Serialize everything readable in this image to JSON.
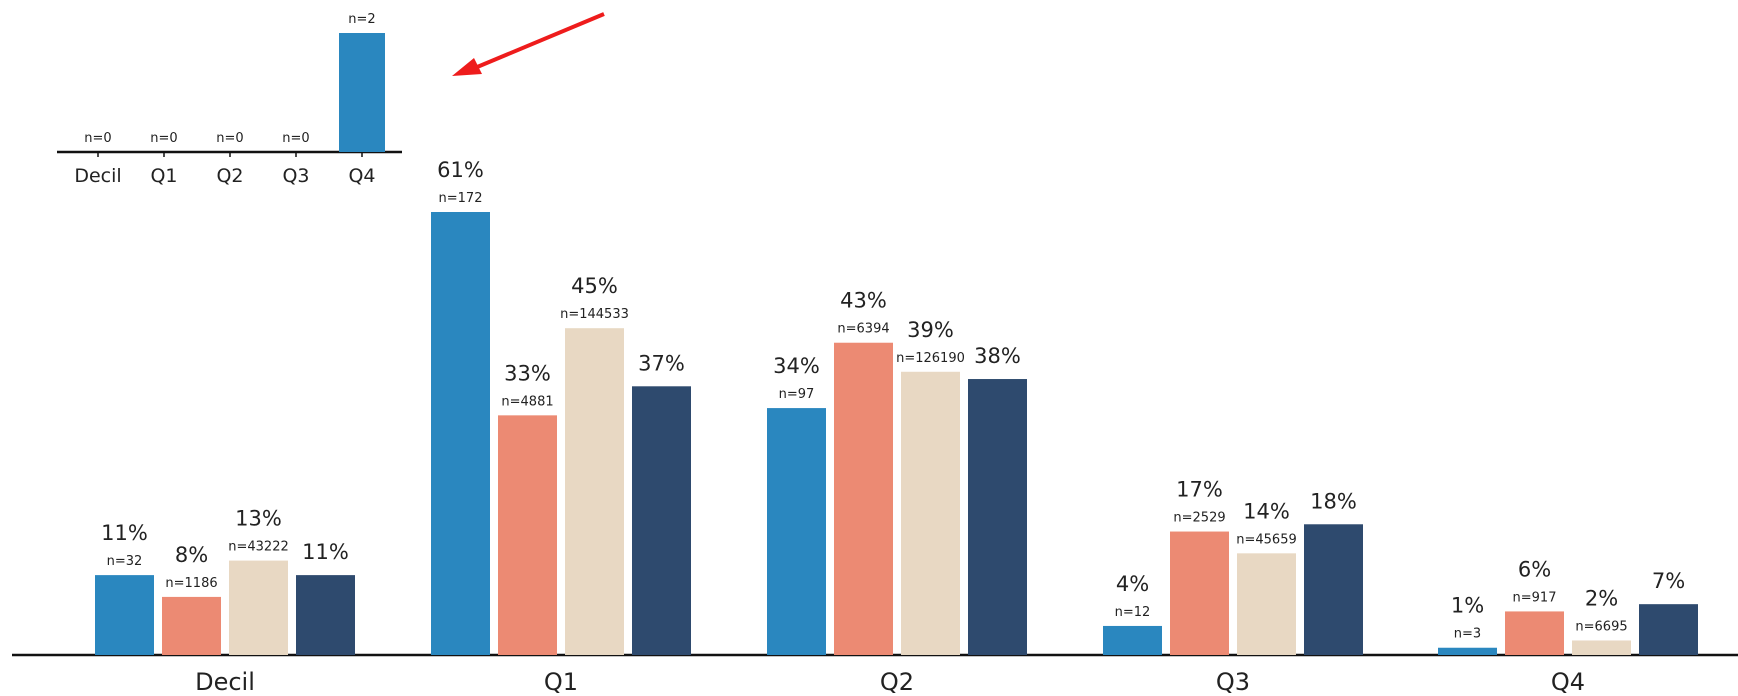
{
  "chart_data": [
    {
      "type": "bar",
      "categories": [
        "Decil",
        "Q1",
        "Q2",
        "Q3",
        "Q4"
      ],
      "ylim": [
        0,
        65
      ],
      "grid": false,
      "legend": "none",
      "series": [
        {
          "color": "#2a87bf",
          "values": [
            11,
            61,
            34,
            4,
            1
          ],
          "labels": [
            "11%",
            "61%",
            "34%",
            "4%",
            "1%"
          ],
          "n_labels": [
            "n=32",
            "n=172",
            "n=97",
            "n=12",
            "n=3"
          ]
        },
        {
          "color": "#ec8a73",
          "values": [
            8,
            33,
            43,
            17,
            6
          ],
          "labels": [
            "8%",
            "33%",
            "43%",
            "17%",
            "6%"
          ],
          "n_labels": [
            "n=1186",
            "n=4881",
            "n=6394",
            "n=2529",
            "n=917"
          ]
        },
        {
          "color": "#e8d8c3",
          "values": [
            13,
            45,
            39,
            14,
            2
          ],
          "labels": [
            "13%",
            "45%",
            "39%",
            "14%",
            "2%"
          ],
          "n_labels": [
            "n=43222",
            "n=144533",
            "n=126190",
            "n=45659",
            "n=6695"
          ]
        },
        {
          "color": "#2e4a6e",
          "values": [
            11,
            37,
            38,
            18,
            7
          ],
          "labels": [
            "11%",
            "37%",
            "38%",
            "18%",
            "7%"
          ],
          "n_labels": [
            "",
            "",
            "",
            "",
            ""
          ]
        }
      ]
    },
    {
      "type": "bar",
      "categories": [
        "Decil",
        "Q1",
        "Q2",
        "Q3",
        "Q4"
      ],
      "values": [
        0,
        0,
        0,
        0,
        2
      ],
      "n_labels": [
        "n=0",
        "n=0",
        "n=0",
        "n=0",
        "n=2"
      ],
      "color": "#2a87bf",
      "ylim": [
        0,
        2
      ]
    }
  ],
  "annotation": {
    "arrow_color": "#ee1c1c"
  }
}
